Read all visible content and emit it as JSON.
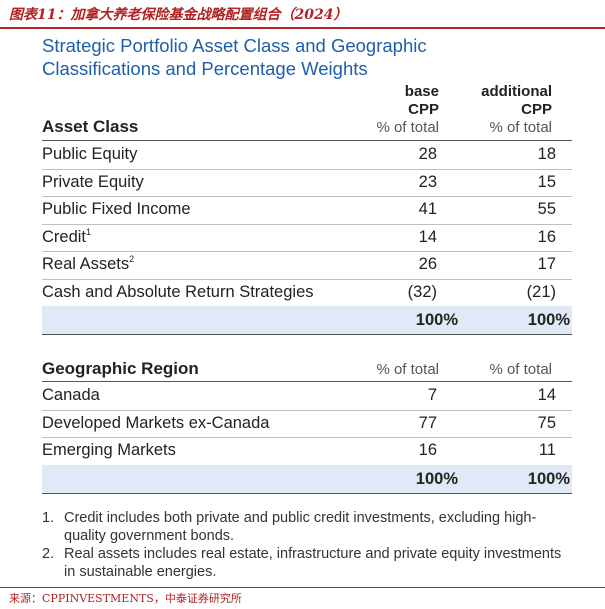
{
  "figure_title": "图表11：加拿大养老保险基金战略配置组合（2024）",
  "panel_title_line1": "Strategic Portfolio Asset Class and Geographic",
  "panel_title_line2": "Classifications and Percentage Weights",
  "columns": {
    "base_line1": "base",
    "base_line2": "CPP",
    "additional_line1": "additional",
    "additional_line2": "CPP",
    "pct_label": "% of total"
  },
  "asset_class": {
    "heading": "Asset Class",
    "rows": [
      {
        "label": "Public Equity",
        "sup": "",
        "base": "28",
        "additional": "18"
      },
      {
        "label": "Private Equity",
        "sup": "",
        "base": "23",
        "additional": "15"
      },
      {
        "label": "Public Fixed Income",
        "sup": "",
        "base": "41",
        "additional": "55"
      },
      {
        "label": "Credit",
        "sup": "1",
        "base": "14",
        "additional": "16"
      },
      {
        "label": "Real Assets",
        "sup": "2",
        "base": "26",
        "additional": "17"
      },
      {
        "label": "Cash and Absolute Return Strategies",
        "sup": "",
        "base": "(32)",
        "additional": "(21)"
      }
    ],
    "total_base": "100%",
    "total_additional": "100%"
  },
  "geographic": {
    "heading": "Geographic Region",
    "rows": [
      {
        "label": "Canada",
        "base": "7",
        "additional": "14"
      },
      {
        "label": "Developed Markets ex-Canada",
        "base": "77",
        "additional": "75"
      },
      {
        "label": "Emerging Markets",
        "base": "16",
        "additional": "11"
      }
    ],
    "total_base": "100%",
    "total_additional": "100%"
  },
  "notes": [
    {
      "num": "1.",
      "text": "Credit includes both private and public credit investments, excluding high-quality government bonds."
    },
    {
      "num": "2.",
      "text": "Real assets includes real estate, infrastructure and private equity investments in sustainable energies."
    }
  ],
  "source": "来源：CPPINVESTMENTS，中泰证券研究所"
}
